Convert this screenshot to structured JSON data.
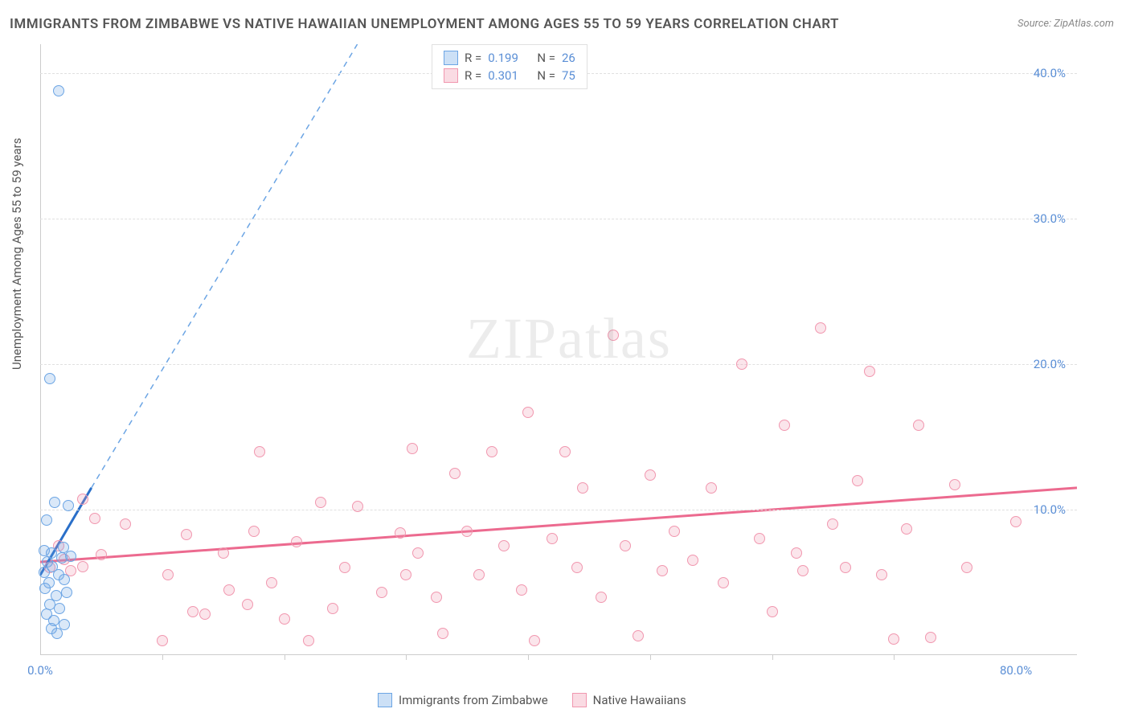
{
  "title": "IMMIGRANTS FROM ZIMBABWE VS NATIVE HAWAIIAN UNEMPLOYMENT AMONG AGES 55 TO 59 YEARS CORRELATION CHART",
  "source": "Source: ZipAtlas.com",
  "ylabel": "Unemployment Among Ages 55 to 59 years",
  "watermark_a": "ZIP",
  "watermark_b": "atlas",
  "legend": {
    "r_label": "R =",
    "n_label": "N =",
    "series1": {
      "r": "0.199",
      "n": "26",
      "color_fill": "#bcd7f2",
      "color_stroke": "#6ca5e4"
    },
    "series2": {
      "r": "0.301",
      "n": "75",
      "color_fill": "#f8d3dd",
      "color_stroke": "#f197af"
    }
  },
  "bottom_legend": {
    "series1_label": "Immigrants from Zimbabwe",
    "series2_label": "Native Hawaiians"
  },
  "axes": {
    "xlim": [
      0,
      85
    ],
    "ylim": [
      0,
      42
    ],
    "x_ticks": [
      0,
      80
    ],
    "x_tick_labels": [
      "0.0%",
      "80.0%"
    ],
    "x_minor_ticks": [
      10,
      20,
      30,
      40,
      50,
      60,
      70
    ],
    "y_ticks": [
      10,
      20,
      30,
      40
    ],
    "y_tick_labels": [
      "10.0%",
      "20.0%",
      "30.0%",
      "40.0%"
    ],
    "grid_color": "#e0e0e0",
    "axis_color": "#cccccc"
  },
  "chart": {
    "type": "scatter",
    "background_color": "#ffffff",
    "series_blue": {
      "color_fill": "rgba(108,165,228,0.25)",
      "color_stroke": "#6ca5e4",
      "marker_size": 14,
      "points": [
        [
          1.5,
          38.8
        ],
        [
          0.8,
          19.0
        ],
        [
          1.2,
          10.5
        ],
        [
          2.3,
          10.3
        ],
        [
          0.5,
          9.3
        ],
        [
          0.9,
          7.0
        ],
        [
          1.8,
          6.7
        ],
        [
          0.3,
          7.2
        ],
        [
          2.5,
          6.8
        ],
        [
          1.0,
          6.1
        ],
        [
          1.5,
          5.5
        ],
        [
          0.7,
          5.0
        ],
        [
          2.0,
          5.2
        ],
        [
          0.4,
          4.6
        ],
        [
          1.3,
          4.1
        ],
        [
          2.2,
          4.3
        ],
        [
          0.8,
          3.5
        ],
        [
          1.6,
          3.2
        ],
        [
          0.5,
          2.8
        ],
        [
          1.1,
          2.4
        ],
        [
          2.0,
          2.1
        ],
        [
          0.9,
          1.8
        ],
        [
          1.4,
          1.5
        ],
        [
          0.6,
          6.4
        ],
        [
          1.9,
          7.4
        ],
        [
          0.3,
          5.7
        ]
      ],
      "trend_solid": {
        "x1": 0,
        "y1": 5.5,
        "x2": 4.2,
        "y2": 11.5,
        "color": "#2a6fc9",
        "width": 3
      },
      "trend_dash": {
        "x1": 4.2,
        "y1": 11.5,
        "x2": 26,
        "y2": 42,
        "color": "#6ca5e4",
        "width": 1.5,
        "dash": "7,6"
      }
    },
    "series_pink": {
      "color_fill": "rgba(241,151,175,0.25)",
      "color_stroke": "#f197af",
      "marker_size": 14,
      "points": [
        [
          3.5,
          10.7
        ],
        [
          4.5,
          9.4
        ],
        [
          2.0,
          6.6
        ],
        [
          3.5,
          6.1
        ],
        [
          1.5,
          7.5
        ],
        [
          2.5,
          5.8
        ],
        [
          5.0,
          6.9
        ],
        [
          0.8,
          6.0
        ],
        [
          10.0,
          1.0
        ],
        [
          12.0,
          8.3
        ],
        [
          12.5,
          3.0
        ],
        [
          15.0,
          7.0
        ],
        [
          15.5,
          4.5
        ],
        [
          10.5,
          5.5
        ],
        [
          18.0,
          14.0
        ],
        [
          17.0,
          3.5
        ],
        [
          17.5,
          8.5
        ],
        [
          19.0,
          5.0
        ],
        [
          20.0,
          2.5
        ],
        [
          21.0,
          7.8
        ],
        [
          22.0,
          1.0
        ],
        [
          23.0,
          10.5
        ],
        [
          24.0,
          3.2
        ],
        [
          25.0,
          6.0
        ],
        [
          26.0,
          10.2
        ],
        [
          28.0,
          4.3
        ],
        [
          29.5,
          8.4
        ],
        [
          30.0,
          5.5
        ],
        [
          30.5,
          14.2
        ],
        [
          31.0,
          7.0
        ],
        [
          32.5,
          4.0
        ],
        [
          34.0,
          12.5
        ],
        [
          35.0,
          8.5
        ],
        [
          36.0,
          5.5
        ],
        [
          37.0,
          14.0
        ],
        [
          38.0,
          7.5
        ],
        [
          39.5,
          4.5
        ],
        [
          40.0,
          16.7
        ],
        [
          40.5,
          1.0
        ],
        [
          42.0,
          8.0
        ],
        [
          43.0,
          14.0
        ],
        [
          44.0,
          6.0
        ],
        [
          44.5,
          11.5
        ],
        [
          46.0,
          4.0
        ],
        [
          47.0,
          22.0
        ],
        [
          48.0,
          7.5
        ],
        [
          49.0,
          1.3
        ],
        [
          50.0,
          12.4
        ],
        [
          51.0,
          5.8
        ],
        [
          52.0,
          8.5
        ],
        [
          53.5,
          6.5
        ],
        [
          55.0,
          11.5
        ],
        [
          56.0,
          5.0
        ],
        [
          57.5,
          20.0
        ],
        [
          59.0,
          8.0
        ],
        [
          60.0,
          3.0
        ],
        [
          61.0,
          15.8
        ],
        [
          62.0,
          7.0
        ],
        [
          62.5,
          5.8
        ],
        [
          64.0,
          22.5
        ],
        [
          65.0,
          9.0
        ],
        [
          66.0,
          6.0
        ],
        [
          68.0,
          19.5
        ],
        [
          69.0,
          5.5
        ],
        [
          70.0,
          1.1
        ],
        [
          71.0,
          8.7
        ],
        [
          72.0,
          15.8
        ],
        [
          73.0,
          1.2
        ],
        [
          75.0,
          11.7
        ],
        [
          76.0,
          6.0
        ],
        [
          80.0,
          9.2
        ],
        [
          7.0,
          9.0
        ],
        [
          13.5,
          2.8
        ],
        [
          33.0,
          1.5
        ],
        [
          67.0,
          12.0
        ]
      ],
      "trend_solid": {
        "x1": 0,
        "y1": 6.4,
        "x2": 85,
        "y2": 11.5,
        "color": "#ec6a8f",
        "width": 3
      }
    }
  }
}
